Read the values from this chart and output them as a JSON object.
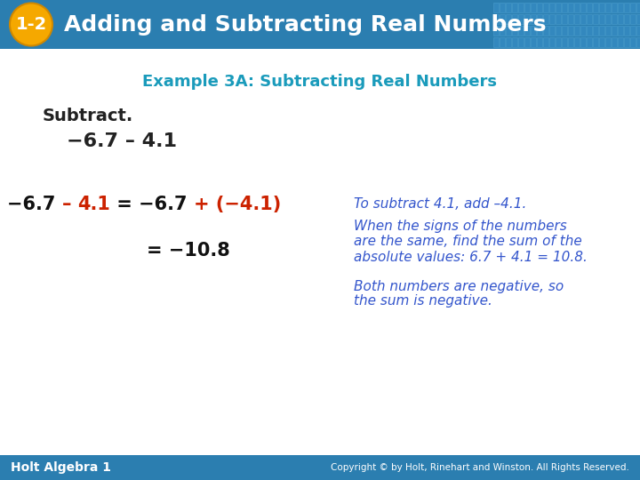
{
  "header_bg_color": "#2B7EB0",
  "header_text": "Adding and Subtracting Real Numbers",
  "header_text_color": "#FFFFFF",
  "badge_bg_color": "#F5A800",
  "badge_text": "1-2",
  "badge_text_color": "#FFFFFF",
  "body_bg_color": "#FFFFFF",
  "example_title": "Example 3A: Subtracting Real Numbers",
  "example_title_color": "#1A9BBB",
  "subtract_label": "Subtract.",
  "subtract_label_color": "#222222",
  "problem_text": "−6.7 – 4.1",
  "problem_color": "#222222",
  "footer_bg_color": "#2B7EB0",
  "footer_left": "Holt Algebra 1",
  "footer_right": "Copyright © by Holt, Rinehart and Winston. All Rights Reserved.",
  "footer_text_color": "#FFFFFF",
  "step1_parts": [
    {
      "text": "−6.7 ",
      "color": "#111111"
    },
    {
      "text": "– ",
      "color": "#CC2200"
    },
    {
      "text": "4.1",
      "color": "#CC2200"
    },
    {
      "text": " = −6.7 ",
      "color": "#111111"
    },
    {
      "text": "+ (−4.1)",
      "color": "#CC2200"
    }
  ],
  "step1_note": "To subtract 4.1, add –4.1.",
  "step1_note_color": "#3355CC",
  "step2_result_parts": [
    {
      "text": "= −10.8",
      "color": "#111111"
    }
  ],
  "step2_note_lines": [
    "When the signs of the numbers",
    "are the same, find the sum of the",
    "absolute values: 6.7 + 4.1 = 10.8."
  ],
  "step2_note_color": "#3355CC",
  "step3_note_lines": [
    "Both numbers are negative, so",
    "the sum is negative."
  ],
  "step3_note_color": "#3355CC",
  "grid_color_light": "#4A9DD5",
  "grid_color_dark": "#3A8DC5"
}
